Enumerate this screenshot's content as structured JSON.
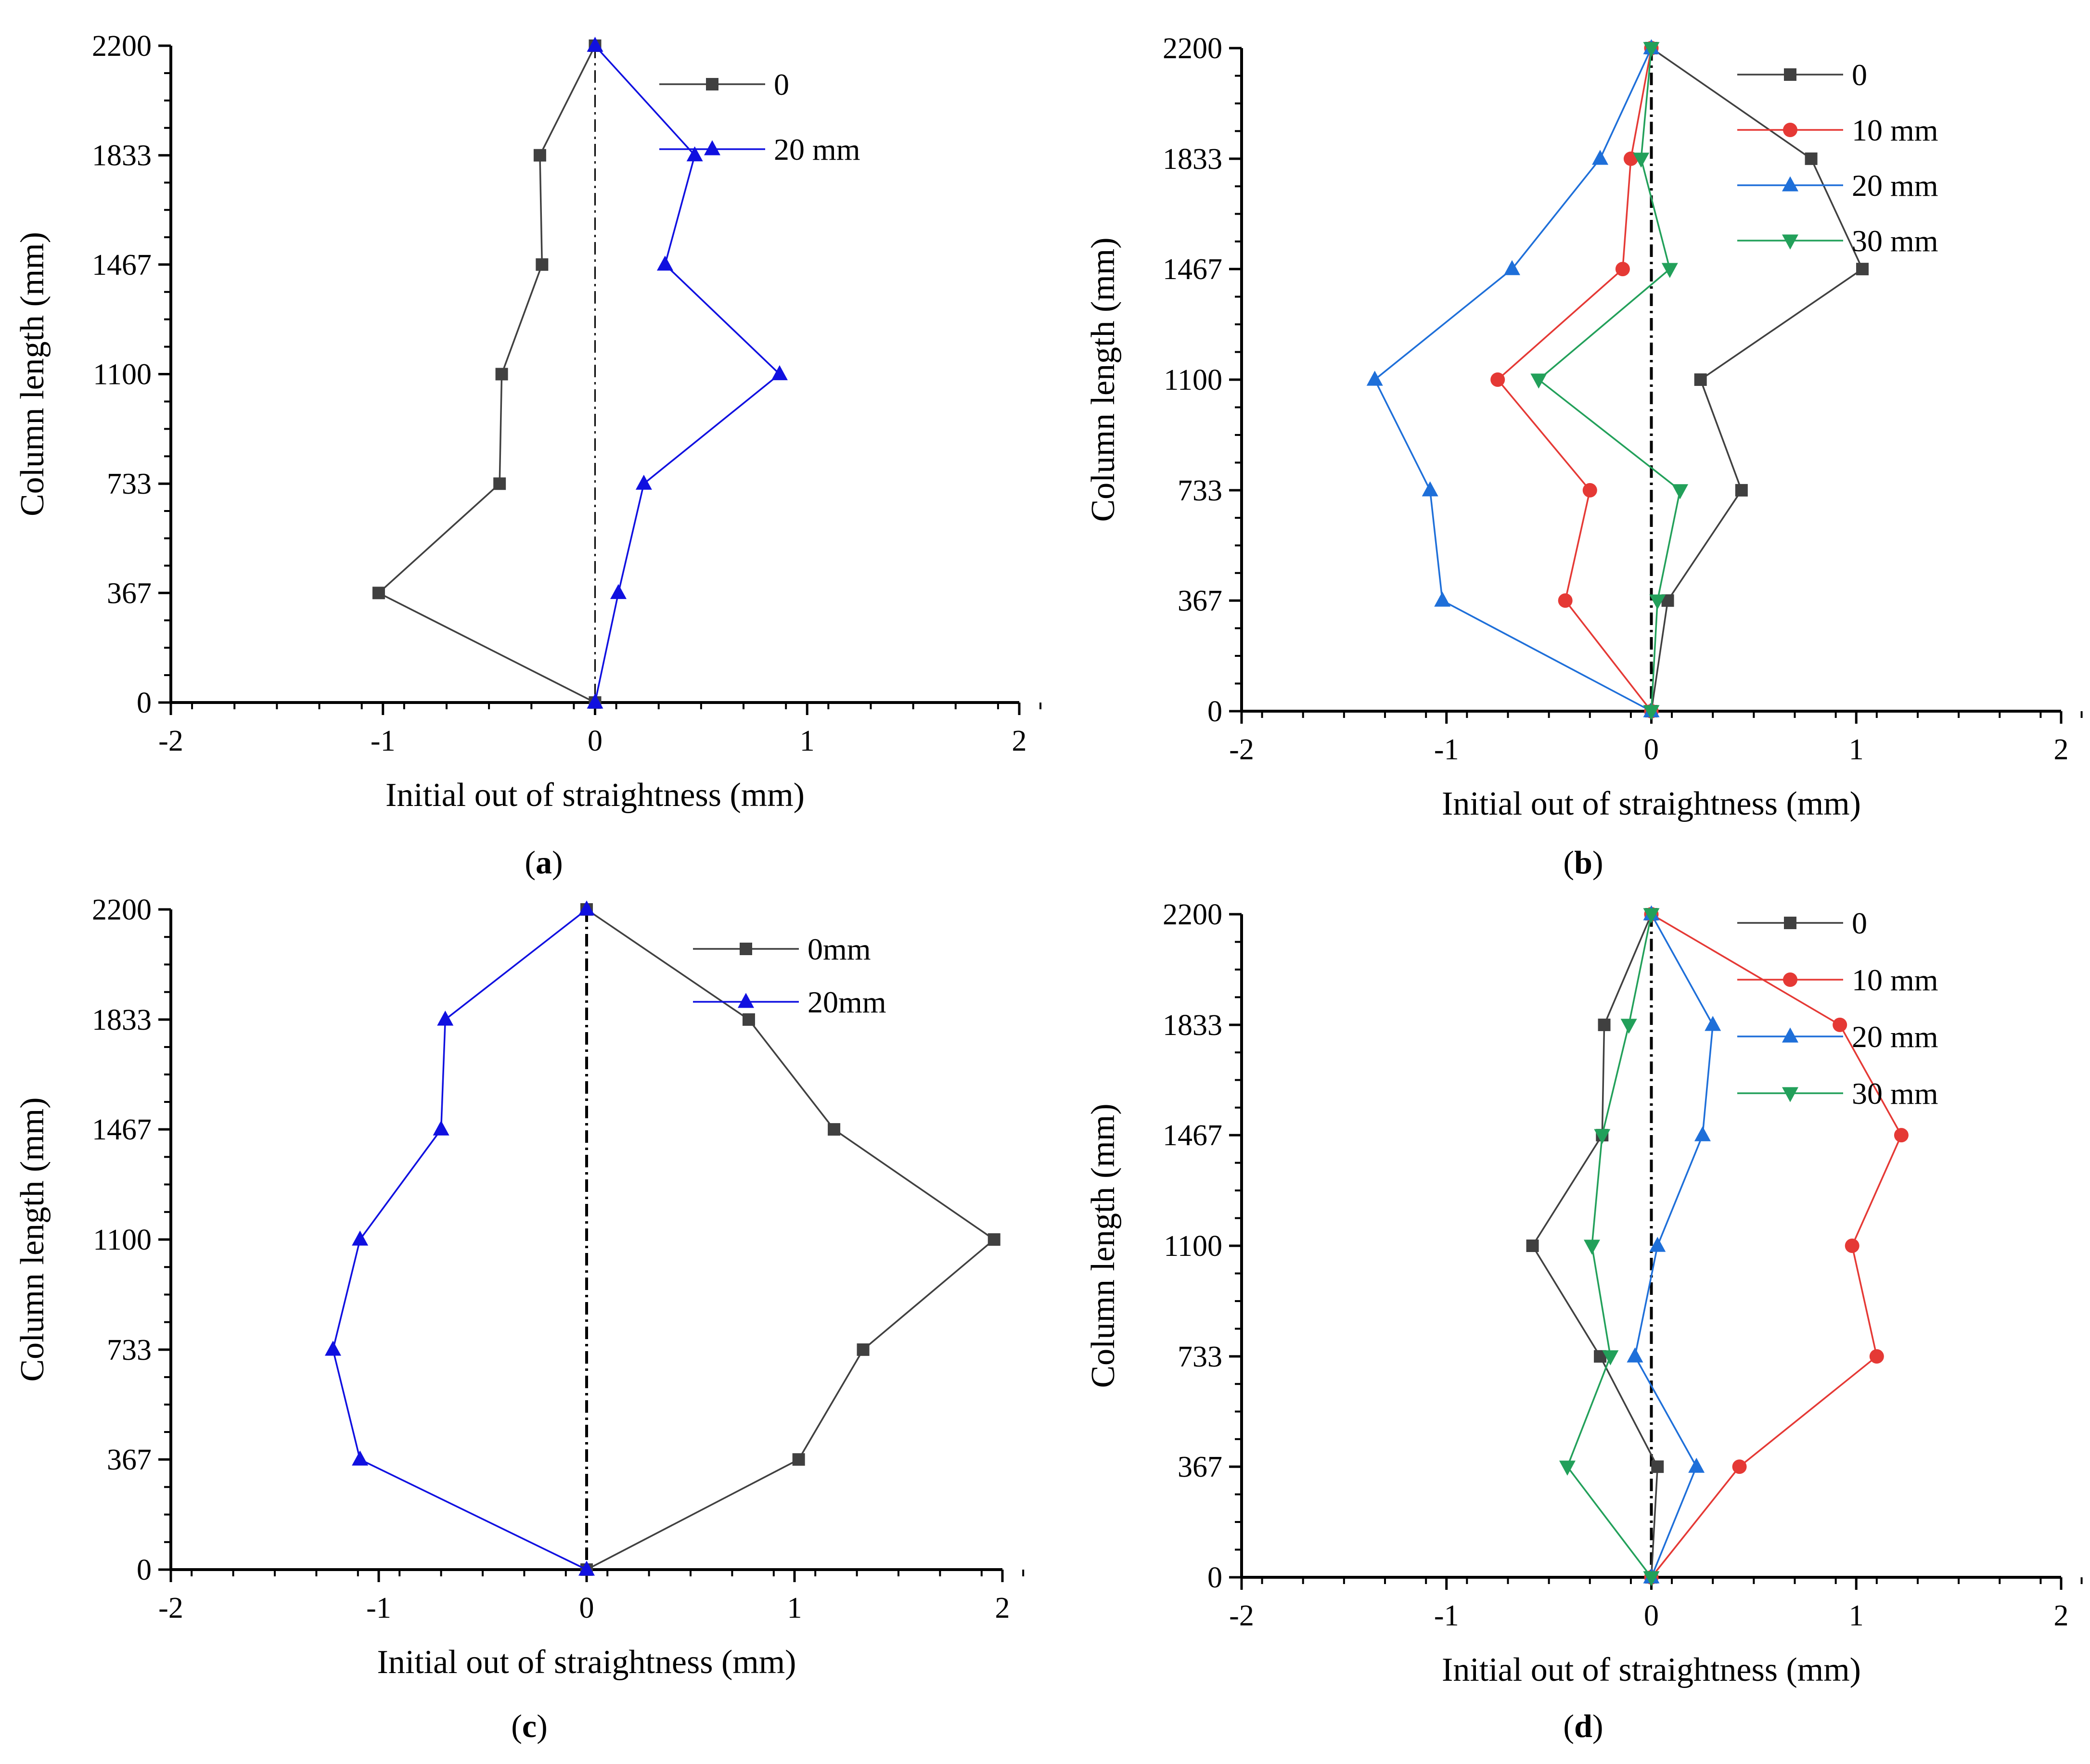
{
  "figure": {
    "panel_labels": [
      "(a)",
      "(b)",
      "(c)",
      "(d)"
    ]
  },
  "chart_data": [
    {
      "type": "line",
      "panel": "(a)",
      "title": "",
      "xlabel": "Initial out of straightness (mm)",
      "ylabel": "Column length (mm)",
      "xlim": [
        -2,
        2
      ],
      "ylim": [
        0,
        2200
      ],
      "xticks": [
        -2,
        -1,
        0,
        1,
        2
      ],
      "yticks": [
        0,
        367,
        733,
        1100,
        1467,
        1833,
        2200
      ],
      "reference_line": {
        "x": 0,
        "style": "dash-dot"
      },
      "legend_position": "top-right",
      "series": [
        {
          "name": "0",
          "color": "#404040",
          "marker": "square",
          "points": [
            [
              0,
              0
            ],
            [
              -1.02,
              367
            ],
            [
              -0.45,
              733
            ],
            [
              -0.44,
              1100
            ],
            [
              -0.25,
              1467
            ],
            [
              -0.26,
              1833
            ],
            [
              0,
              2200
            ]
          ]
        },
        {
          "name": "20 mm",
          "color": "#1010e0",
          "marker": "triangle-up",
          "points": [
            [
              0,
              0
            ],
            [
              0.11,
              367
            ],
            [
              0.23,
              733
            ],
            [
              0.87,
              1100
            ],
            [
              0.33,
              1467
            ],
            [
              0.47,
              1833
            ],
            [
              0,
              2200
            ]
          ]
        }
      ]
    },
    {
      "type": "line",
      "panel": "(b)",
      "title": "",
      "xlabel": "Initial out of straightness (mm)",
      "ylabel": "Column length (mm)",
      "xlim": [
        -2,
        2
      ],
      "ylim": [
        0,
        2200
      ],
      "xticks": [
        -2,
        -1,
        0,
        1,
        2
      ],
      "yticks": [
        0,
        367,
        733,
        1100,
        1467,
        1833,
        2200
      ],
      "reference_line": {
        "x": 0,
        "style": "dash-dot"
      },
      "legend_position": "top-right",
      "series": [
        {
          "name": "0",
          "color": "#404040",
          "marker": "square",
          "points": [
            [
              0,
              0
            ],
            [
              0.08,
              367
            ],
            [
              0.44,
              733
            ],
            [
              0.24,
              1100
            ],
            [
              1.03,
              1467
            ],
            [
              0.78,
              1833
            ],
            [
              0,
              2200
            ]
          ]
        },
        {
          "name": "10 mm",
          "color": "#e53935",
          "marker": "circle",
          "points": [
            [
              0,
              0
            ],
            [
              -0.42,
              367
            ],
            [
              -0.3,
              733
            ],
            [
              -0.75,
              1100
            ],
            [
              -0.14,
              1467
            ],
            [
              -0.1,
              1833
            ],
            [
              0,
              2200
            ]
          ]
        },
        {
          "name": "20 mm",
          "color": "#1e6fd9",
          "marker": "triangle-up",
          "points": [
            [
              0,
              0
            ],
            [
              -1.02,
              367
            ],
            [
              -1.08,
              733
            ],
            [
              -1.35,
              1100
            ],
            [
              -0.68,
              1467
            ],
            [
              -0.25,
              1833
            ],
            [
              0,
              2200
            ]
          ]
        },
        {
          "name": "30 mm",
          "color": "#22a05a",
          "marker": "triangle-down",
          "points": [
            [
              0,
              0
            ],
            [
              0.03,
              367
            ],
            [
              0.14,
              733
            ],
            [
              -0.55,
              1100
            ],
            [
              0.09,
              1467
            ],
            [
              -0.05,
              1833
            ],
            [
              0,
              2200
            ]
          ]
        }
      ]
    },
    {
      "type": "line",
      "panel": "(c)",
      "title": "",
      "xlabel": "Initial out of straightness (mm)",
      "ylabel": "Column length (mm)",
      "xlim": [
        -2,
        2
      ],
      "ylim": [
        0,
        2200
      ],
      "xticks": [
        -2,
        -1,
        0,
        1,
        2
      ],
      "yticks": [
        0,
        367,
        733,
        1100,
        1467,
        1833,
        2200
      ],
      "reference_line": {
        "x": 0,
        "style": "dash-dot"
      },
      "legend_position": "top-right",
      "series": [
        {
          "name": "0mm",
          "color": "#404040",
          "marker": "square",
          "points": [
            [
              0,
              0
            ],
            [
              1.02,
              367
            ],
            [
              1.33,
              733
            ],
            [
              1.96,
              1100
            ],
            [
              1.19,
              1467
            ],
            [
              0.78,
              1833
            ],
            [
              0,
              2200
            ]
          ]
        },
        {
          "name": "20mm",
          "color": "#1010e0",
          "marker": "triangle-up",
          "points": [
            [
              0,
              0
            ],
            [
              -1.09,
              367
            ],
            [
              -1.22,
              733
            ],
            [
              -1.09,
              1100
            ],
            [
              -0.7,
              1467
            ],
            [
              -0.68,
              1833
            ],
            [
              0,
              2200
            ]
          ]
        }
      ]
    },
    {
      "type": "line",
      "panel": "(d)",
      "title": "",
      "xlabel": "Initial out of straightness (mm)",
      "ylabel": "Column length (mm)",
      "xlim": [
        -2,
        2
      ],
      "ylim": [
        0,
        2200
      ],
      "xticks": [
        -2,
        -1,
        0,
        1,
        2
      ],
      "yticks": [
        0,
        367,
        733,
        1100,
        1467,
        1833,
        2200
      ],
      "reference_line": {
        "x": 0,
        "style": "dash-dot"
      },
      "legend_position": "top-right",
      "series": [
        {
          "name": "0",
          "color": "#404040",
          "marker": "square",
          "points": [
            [
              0,
              0
            ],
            [
              0.03,
              367
            ],
            [
              -0.25,
              733
            ],
            [
              -0.58,
              1100
            ],
            [
              -0.24,
              1467
            ],
            [
              -0.23,
              1833
            ],
            [
              0,
              2200
            ]
          ]
        },
        {
          "name": "10 mm",
          "color": "#e53935",
          "marker": "circle",
          "points": [
            [
              0,
              0
            ],
            [
              0.43,
              367
            ],
            [
              1.1,
              733
            ],
            [
              0.98,
              1100
            ],
            [
              1.22,
              1467
            ],
            [
              0.92,
              1833
            ],
            [
              0,
              2200
            ]
          ]
        },
        {
          "name": "20 mm",
          "color": "#1e6fd9",
          "marker": "triangle-up",
          "points": [
            [
              0,
              0
            ],
            [
              0.22,
              367
            ],
            [
              -0.08,
              733
            ],
            [
              0.03,
              1100
            ],
            [
              0.25,
              1467
            ],
            [
              0.3,
              1833
            ],
            [
              0,
              2200
            ]
          ]
        },
        {
          "name": "30 mm",
          "color": "#22a05a",
          "marker": "triangle-down",
          "points": [
            [
              0,
              0
            ],
            [
              -0.41,
              367
            ],
            [
              -0.2,
              733
            ],
            [
              -0.29,
              1100
            ],
            [
              -0.24,
              1467
            ],
            [
              -0.11,
              1833
            ],
            [
              0,
              2200
            ]
          ]
        }
      ]
    }
  ]
}
